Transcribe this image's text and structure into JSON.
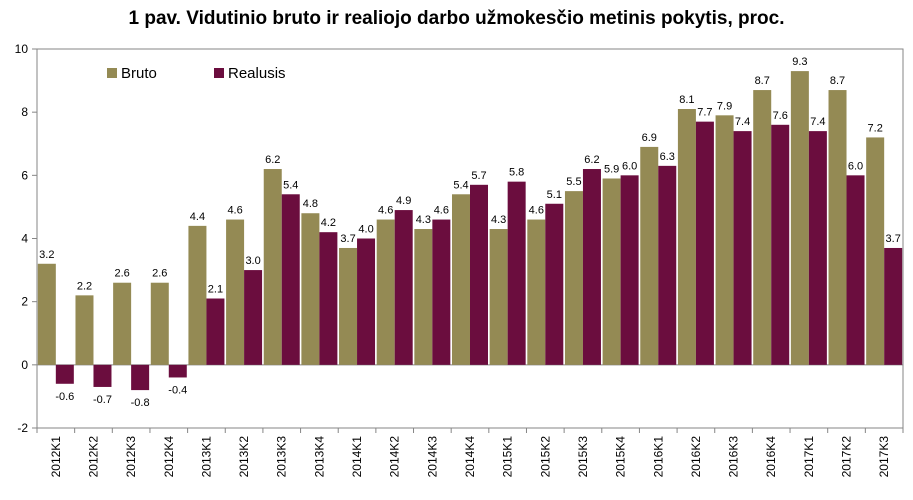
{
  "chart_data": {
    "type": "bar",
    "title": "1 pav. Vidutinio bruto ir realiojo darbo užmokesčio metinis pokytis, proc.",
    "categories": [
      "2012K1",
      "2012K2",
      "2012K3",
      "2012K4",
      "2013K1",
      "2013K2",
      "2013K3",
      "2013K4",
      "2014K1",
      "2014K2",
      "2014K3",
      "2014K4",
      "2015K1",
      "2015K2",
      "2015K3",
      "2015K4",
      "2016K1",
      "2016K2",
      "2016K3",
      "2016K4",
      "2017K1",
      "2017K2",
      "2017K3"
    ],
    "series": [
      {
        "name": "Bruto",
        "color": "#948a54",
        "values": [
          3.2,
          2.2,
          2.6,
          2.6,
          4.4,
          4.6,
          6.2,
          4.8,
          3.7,
          4.6,
          4.3,
          5.4,
          4.3,
          4.6,
          5.5,
          5.9,
          6.9,
          8.1,
          7.9,
          8.7,
          9.3,
          8.7,
          7.2
        ]
      },
      {
        "name": "Realusis",
        "color": "#6b0d3e",
        "values": [
          -0.6,
          -0.7,
          -0.8,
          -0.4,
          2.1,
          3.0,
          5.4,
          4.2,
          4.0,
          4.9,
          4.6,
          5.7,
          5.8,
          5.1,
          6.2,
          6.0,
          6.3,
          7.7,
          7.4,
          7.6,
          7.4,
          6.0,
          3.7
        ]
      }
    ],
    "data_labels": {
      "Bruto": [
        "3.2",
        "2.2",
        "2.6",
        "2.6",
        "4.4",
        "4.6",
        "6.2",
        "4.8",
        "3.7",
        "4.6",
        "4.3",
        "5.4",
        "4.3",
        "4.6",
        "5.5",
        "5.9",
        "6.9",
        "8.1",
        "7.9",
        "8.7",
        "9.3",
        "8.7",
        "7.2"
      ],
      "Realusis": [
        "-0.6",
        "-0.7",
        "-0.8",
        "-0.4",
        "2.1",
        "3.0",
        "5.4",
        "4.2",
        "4.0",
        "4.9",
        "4.6",
        "5.7",
        "5.8",
        "5.1",
        "6.2",
        "6.0",
        "6.3",
        "7.7",
        "7.4",
        "7.6",
        "7.4",
        "6.0",
        "3.7"
      ]
    },
    "ylim": [
      -2,
      10
    ],
    "yticks": [
      -2,
      0,
      2,
      4,
      6,
      8,
      10
    ],
    "xlabel": "",
    "ylabel": "",
    "grid": false,
    "legend_position": "top-left"
  }
}
